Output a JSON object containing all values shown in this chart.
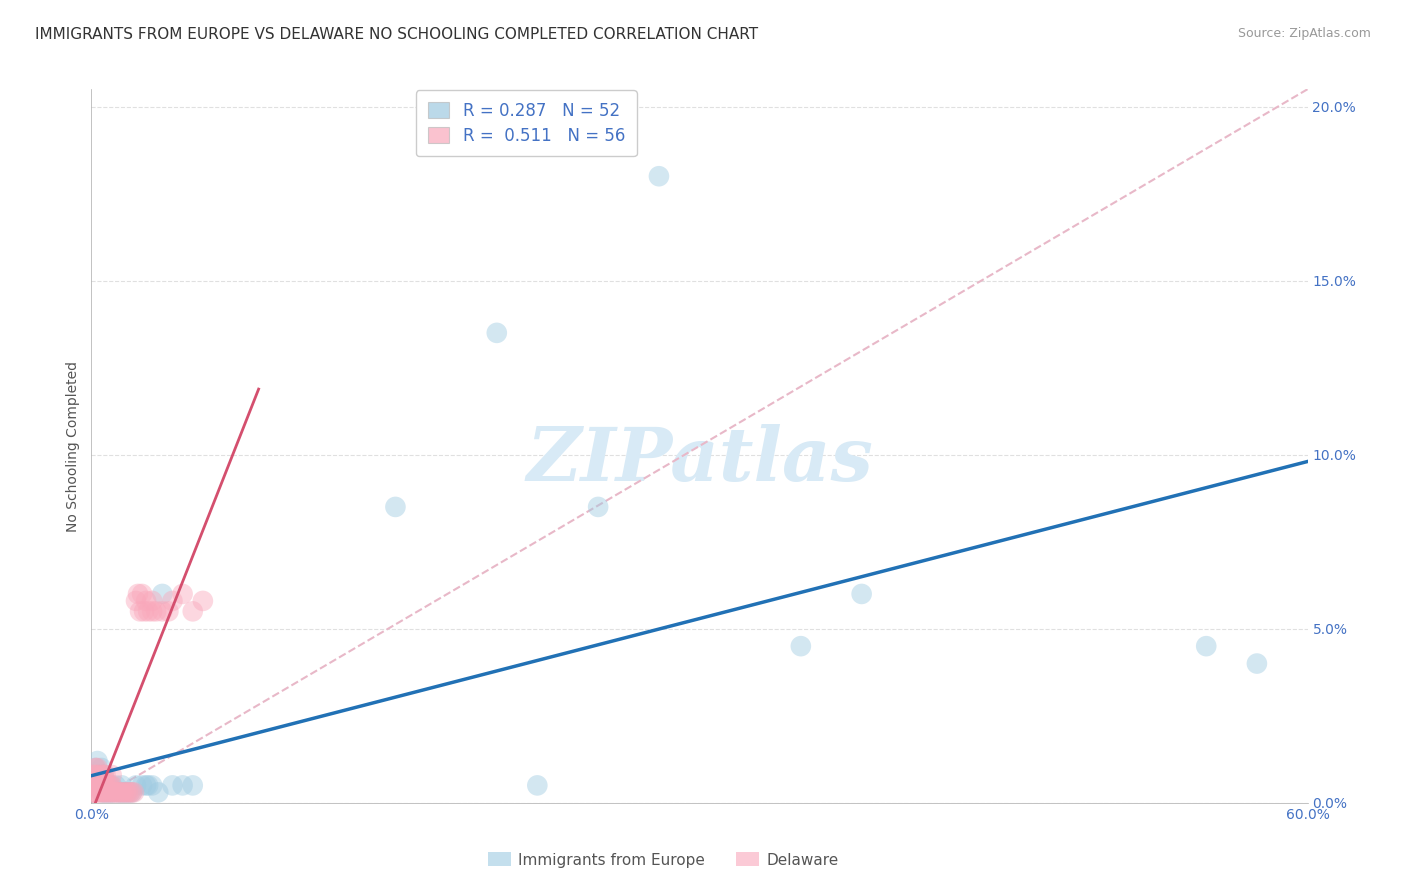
{
  "title": "IMMIGRANTS FROM EUROPE VS DELAWARE NO SCHOOLING COMPLETED CORRELATION CHART",
  "source": "Source: ZipAtlas.com",
  "ylabel": "No Schooling Completed",
  "legend_label_blue": "Immigrants from Europe",
  "legend_label_pink": "Delaware",
  "legend_r_blue": "R = 0.287",
  "legend_n_blue": "N = 52",
  "legend_r_pink": "R =  0.511",
  "legend_n_pink": "N = 56",
  "xlim": [
    0.0,
    0.6
  ],
  "ylim": [
    0.0,
    0.205
  ],
  "xticks": [
    0.0,
    0.1,
    0.2,
    0.3,
    0.4,
    0.5,
    0.6
  ],
  "xtick_labels_show": [
    "0.0%",
    "",
    "",
    "",
    "",
    "",
    "60.0%"
  ],
  "yticks": [
    0.0,
    0.05,
    0.1,
    0.15,
    0.2
  ],
  "ytick_labels_right": [
    "0.0%",
    "5.0%",
    "10.0%",
    "15.0%",
    "20.0%"
  ],
  "color_blue": "#9ecae1",
  "color_pink": "#f9a8bb",
  "color_line_blue": "#2171b5",
  "color_line_pink": "#d44f6e",
  "color_diag": "#d0b0c0",
  "color_grid": "#e0e0e0",
  "color_title": "#333333",
  "color_source": "#999999",
  "color_tick_labels": "#4472c4",
  "watermark": "ZIPatlas",
  "watermark_color": "#d8eaf6",
  "title_fontsize": 11,
  "source_fontsize": 9,
  "ylabel_fontsize": 10,
  "tick_fontsize": 10,
  "legend_fontsize": 11,
  "blue_x": [
    0.001,
    0.002,
    0.002,
    0.003,
    0.003,
    0.003,
    0.004,
    0.004,
    0.005,
    0.005,
    0.005,
    0.006,
    0.006,
    0.006,
    0.007,
    0.007,
    0.008,
    0.008,
    0.009,
    0.009,
    0.01,
    0.01,
    0.011,
    0.012,
    0.013,
    0.014,
    0.015,
    0.015,
    0.016,
    0.017,
    0.018,
    0.019,
    0.02,
    0.022,
    0.025,
    0.027,
    0.028,
    0.03,
    0.033,
    0.035,
    0.04,
    0.045,
    0.05,
    0.15,
    0.2,
    0.22,
    0.25,
    0.28,
    0.35,
    0.38,
    0.55,
    0.575
  ],
  "blue_y": [
    0.005,
    0.005,
    0.01,
    0.005,
    0.008,
    0.012,
    0.005,
    0.008,
    0.003,
    0.005,
    0.01,
    0.003,
    0.005,
    0.008,
    0.003,
    0.005,
    0.003,
    0.005,
    0.003,
    0.005,
    0.003,
    0.005,
    0.003,
    0.005,
    0.003,
    0.003,
    0.003,
    0.005,
    0.003,
    0.003,
    0.003,
    0.003,
    0.003,
    0.005,
    0.005,
    0.005,
    0.005,
    0.005,
    0.003,
    0.06,
    0.005,
    0.005,
    0.005,
    0.085,
    0.135,
    0.005,
    0.085,
    0.18,
    0.045,
    0.06,
    0.045,
    0.04
  ],
  "pink_x": [
    0.001,
    0.001,
    0.001,
    0.002,
    0.002,
    0.002,
    0.002,
    0.003,
    0.003,
    0.003,
    0.003,
    0.004,
    0.004,
    0.005,
    0.005,
    0.005,
    0.006,
    0.006,
    0.006,
    0.007,
    0.007,
    0.007,
    0.008,
    0.008,
    0.009,
    0.009,
    0.01,
    0.01,
    0.01,
    0.011,
    0.012,
    0.013,
    0.014,
    0.015,
    0.016,
    0.017,
    0.018,
    0.019,
    0.02,
    0.021,
    0.022,
    0.023,
    0.024,
    0.025,
    0.026,
    0.027,
    0.028,
    0.03,
    0.03,
    0.032,
    0.035,
    0.038,
    0.04,
    0.045,
    0.05,
    0.055
  ],
  "pink_y": [
    0.003,
    0.005,
    0.008,
    0.003,
    0.005,
    0.008,
    0.01,
    0.003,
    0.005,
    0.008,
    0.01,
    0.003,
    0.005,
    0.003,
    0.005,
    0.008,
    0.003,
    0.005,
    0.008,
    0.003,
    0.005,
    0.008,
    0.003,
    0.005,
    0.003,
    0.005,
    0.003,
    0.005,
    0.008,
    0.003,
    0.003,
    0.003,
    0.003,
    0.003,
    0.003,
    0.003,
    0.003,
    0.003,
    0.003,
    0.003,
    0.058,
    0.06,
    0.055,
    0.06,
    0.055,
    0.058,
    0.055,
    0.055,
    0.058,
    0.055,
    0.055,
    0.055,
    0.058,
    0.06,
    0.055,
    0.058
  ]
}
